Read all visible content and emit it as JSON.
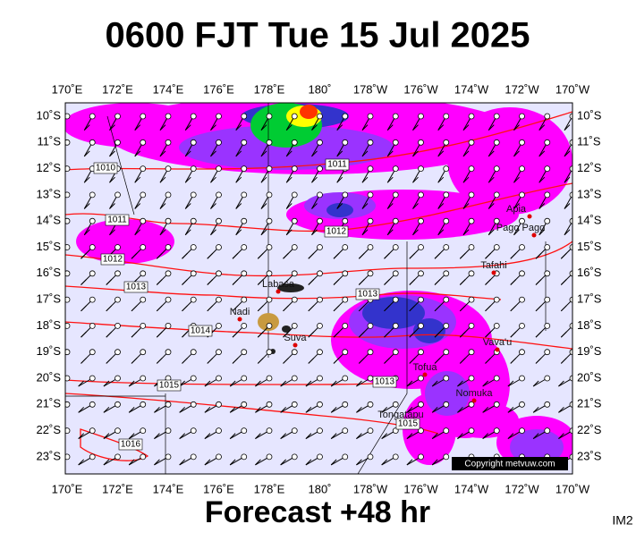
{
  "header": {
    "title": "0600 FJT Tue 15 Jul 2025"
  },
  "map": {
    "lon_labels": [
      "170˚E",
      "172˚E",
      "174˚E",
      "176˚E",
      "178˚E",
      "180˚",
      "178˚W",
      "176˚W",
      "174˚W",
      "172˚W",
      "170˚W"
    ],
    "lat_labels": [
      "10˚S",
      "11˚S",
      "12˚S",
      "13˚S",
      "14˚S",
      "15˚S",
      "16˚S",
      "17˚S",
      "18˚S",
      "19˚S",
      "20˚S",
      "21˚S",
      "22˚S",
      "23˚S"
    ],
    "places": [
      "Apia",
      "Pago Pago",
      "Tafahi",
      "Labasa",
      "Nadi",
      "Suva",
      "Vava'u",
      "Tofua",
      "Nomuka",
      "Tongatapu"
    ],
    "isobar_labels": [
      "1010",
      "1011",
      "1012",
      "1013",
      "1014",
      "1015",
      "1016",
      "1011",
      "1012",
      "1013",
      "1013",
      "1015"
    ],
    "copyright": "Copyright metvuw.com"
  },
  "footer": {
    "title": "Forecast +48 hr",
    "code": "IM2"
  }
}
